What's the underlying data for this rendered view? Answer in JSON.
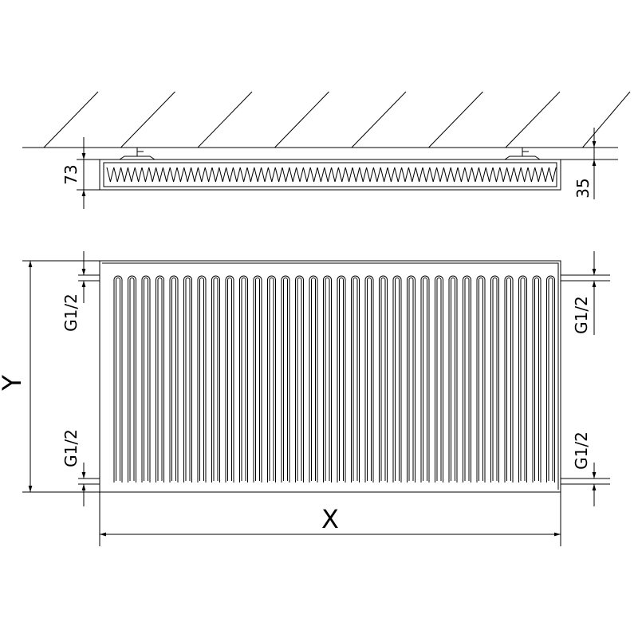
{
  "side_view": {
    "depth_label": "73",
    "wall_distance_label": "35"
  },
  "front_view": {
    "height_label": "Y",
    "width_label": "X",
    "connection_left_top": "G1/2",
    "connection_left_bottom": "G1/2",
    "connection_right_top": "G1/2",
    "connection_right_bottom": "G1/2"
  },
  "colors": {
    "line": "#000000",
    "background": "#ffffff"
  }
}
